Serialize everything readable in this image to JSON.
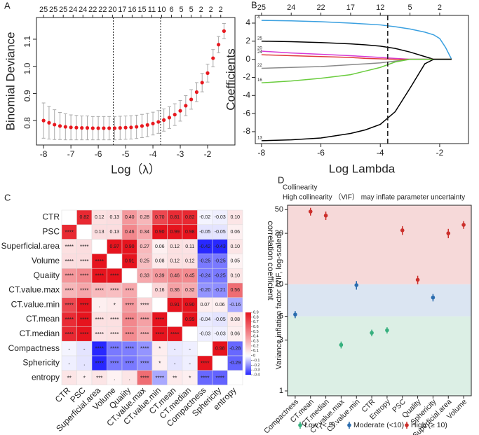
{
  "chart_data": [
    {
      "type": "cv",
      "label": "A",
      "xlabel": "Log（λ）",
      "ylabel": "Binomial Deviance",
      "x": [
        -8,
        -7.8,
        -7.6,
        -7.4,
        -7.2,
        -7,
        -6.8,
        -6.6,
        -6.4,
        -6.2,
        -6,
        -5.8,
        -5.6,
        -5.4,
        -5.2,
        -5,
        -4.8,
        -4.6,
        -4.4,
        -4.2,
        -4,
        -3.8,
        -3.6,
        -3.4,
        -3.2,
        -3,
        -2.8,
        -2.6,
        -2.4,
        -2.2,
        -2,
        -1.8,
        -1.6,
        -1.4
      ],
      "y": [
        0.8,
        0.792,
        0.785,
        0.78,
        0.777,
        0.775,
        0.774,
        0.773,
        0.773,
        0.772,
        0.772,
        0.772,
        0.772,
        0.772,
        0.773,
        0.774,
        0.775,
        0.777,
        0.78,
        0.784,
        0.789,
        0.795,
        0.802,
        0.811,
        0.822,
        0.836,
        0.855,
        0.878,
        0.905,
        0.94,
        0.975,
        1.03,
        1.08,
        1.13
      ],
      "errors": [
        0.065,
        0.06,
        0.055,
        0.05,
        0.048,
        0.046,
        0.045,
        0.044,
        0.044,
        0.043,
        0.043,
        0.043,
        0.043,
        0.043,
        0.043,
        0.043,
        0.043,
        0.043,
        0.043,
        0.043,
        0.042,
        0.042,
        0.041,
        0.04,
        0.04,
        0.038,
        0.037,
        0.036,
        0.035,
        0.034,
        0.033,
        0.032,
        0.03,
        0.028
      ],
      "color": "#e8191f",
      "error_color": "#aaaaaa",
      "xlim": [
        -8.26,
        -1.0
      ],
      "ylim": [
        0.71,
        1.18
      ],
      "xticks": [
        -8,
        -7,
        -6,
        -5,
        -4,
        -3,
        -2
      ],
      "yticks": [
        0.8,
        0.9,
        {
          "value": 1,
          "label": "1.0"
        },
        1.1
      ],
      "top_ticks": [
        {
          "value": -8,
          "label": "25"
        },
        {
          "value": -7.64,
          "label": "25"
        },
        {
          "value": -7.28,
          "label": "25"
        },
        {
          "value": -6.92,
          "label": "24"
        },
        {
          "value": -6.56,
          "label": "24"
        },
        {
          "value": -6.2,
          "label": "22"
        },
        {
          "value": -5.84,
          "label": "22"
        },
        {
          "value": -5.48,
          "label": "20"
        },
        {
          "value": -5.12,
          "label": "17"
        },
        {
          "value": -4.76,
          "label": "16"
        },
        {
          "value": -4.4,
          "label": "15"
        },
        {
          "value": -4.04,
          "label": "11"
        },
        {
          "value": -3.68,
          "label": "10"
        },
        {
          "value": -3.32,
          "label": "6"
        },
        {
          "value": -2.96,
          "label": "5"
        },
        {
          "value": -2.6,
          "label": "5"
        },
        {
          "value": -2.24,
          "label": "2"
        },
        {
          "value": -1.88,
          "label": "2"
        },
        {
          "value": -1.52,
          "label": "2"
        }
      ],
      "vlines": [
        -5.45,
        -3.72
      ]
    },
    {
      "type": "path",
      "label": "B",
      "xlabel": "Log Lambda",
      "ylabel": "Coefficients",
      "x": [
        -8,
        -7,
        -6,
        -5,
        -4.5,
        -4,
        -3.5,
        -3,
        -2.5,
        -2.2,
        -2,
        -1.8,
        -1.6
      ],
      "series": [
        {
          "name": "4",
          "color": "#3aa0e0",
          "values": [
            4.3,
            4.25,
            4.15,
            4,
            3.9,
            3.8,
            3.6,
            3.35,
            3,
            2.7,
            2.3,
            1.3,
            0
          ]
        },
        {
          "name": "25",
          "color": "#000000",
          "values": [
            2,
            1.95,
            1.85,
            1.7,
            1.6,
            1.45,
            1.2,
            0.8,
            0.3,
            0,
            0,
            0,
            0
          ]
        },
        {
          "name": "20",
          "color": "#d63ad6",
          "values": [
            0.9,
            0.7,
            0.55,
            0.4,
            0.3,
            0.2,
            0.1,
            0,
            0,
            0,
            0,
            0,
            0
          ]
        },
        {
          "name": "24",
          "color": "#e03b3b",
          "values": [
            0.5,
            0.4,
            0.3,
            0.2,
            0.1,
            0.05,
            0,
            0,
            0,
            0,
            0,
            0,
            0
          ]
        },
        {
          "name": "22",
          "color": "#8a8a8a",
          "values": [
            -1,
            -0.9,
            -0.8,
            -0.6,
            -0.5,
            -0.4,
            -0.2,
            0,
            0,
            0,
            0,
            0,
            0
          ]
        },
        {
          "name": "16",
          "color": "#6acc3e",
          "values": [
            -2.6,
            -2.4,
            -2.1,
            -1.7,
            -1.3,
            -0.9,
            -0.3,
            0,
            0,
            0,
            0,
            0,
            0
          ]
        },
        {
          "name": "13",
          "color": "#000000",
          "values": [
            -9,
            -8.9,
            -8.7,
            -8.2,
            -7.8,
            -7.2,
            -5.8,
            -3.2,
            -0.5,
            0,
            0,
            0,
            0
          ]
        }
      ],
      "xlim": [
        -8.21,
        -1.03
      ],
      "ylim": [
        -9.32,
        4.85
      ],
      "xticks": [
        -8,
        -6,
        -4,
        -2
      ],
      "yticks": [
        -8,
        -6,
        -4,
        -2,
        0,
        2,
        4
      ],
      "top_ticks": [
        {
          "value": -8,
          "label": "25"
        },
        {
          "value": -7,
          "label": "24"
        },
        {
          "value": -6,
          "label": "22"
        },
        {
          "value": -5,
          "label": "17"
        },
        {
          "value": -4,
          "label": "12"
        },
        {
          "value": -3,
          "label": "5"
        },
        {
          "value": -2,
          "label": "2"
        }
      ],
      "vlines": [
        -3.75
      ]
    },
    {
      "type": "heatmap",
      "label": "C",
      "colorbar_label": "correlation coefficient",
      "rows": [
        "CTR",
        "PSC",
        "Superficial.area",
        "Volume",
        "Quaiity",
        "CT.value.max",
        "CT.value.min",
        "CT.mean",
        "CT.median",
        "Compactness",
        "Sphericity",
        "entropy"
      ],
      "values": [
        [
          null,
          0.82,
          0.12,
          0.13,
          0.4,
          0.28,
          0.7,
          0.81,
          0.82,
          -0.02,
          -0.03,
          0.1
        ],
        [
          null,
          null,
          0.13,
          0.13,
          0.46,
          0.34,
          0.9,
          0.99,
          0.98,
          -0.05,
          -0.05,
          0.06
        ],
        [
          null,
          null,
          null,
          0.97,
          0.9,
          0.27,
          0.06,
          0.12,
          0.11,
          -0.42,
          -0.43,
          0.1
        ],
        [
          null,
          null,
          null,
          null,
          0.91,
          0.25,
          0.08,
          0.12,
          0.12,
          -0.25,
          -0.25,
          0.05
        ],
        [
          null,
          null,
          null,
          null,
          null,
          0.33,
          0.39,
          0.46,
          0.45,
          -0.24,
          -0.25,
          0.1
        ],
        [
          null,
          null,
          null,
          null,
          null,
          null,
          0.16,
          0.36,
          0.32,
          -0.2,
          -0.21,
          0.56
        ],
        [
          null,
          null,
          null,
          null,
          null,
          null,
          null,
          0.91,
          0.9,
          0.07,
          0.06,
          -0.16
        ],
        [
          null,
          null,
          null,
          null,
          null,
          null,
          null,
          null,
          0.99,
          -0.04,
          -0.05,
          0.08
        ],
        [
          null,
          null,
          null,
          null,
          null,
          null,
          null,
          null,
          null,
          -0.03,
          -0.03,
          0.06
        ],
        [
          null,
          null,
          null,
          null,
          null,
          null,
          null,
          null,
          null,
          null,
          0.98,
          -0.28
        ],
        [
          null,
          null,
          null,
          null,
          null,
          null,
          null,
          null,
          null,
          null,
          null,
          -0.29
        ],
        [
          null,
          null,
          null,
          null,
          null,
          null,
          null,
          null,
          null,
          null,
          null,
          null
        ]
      ],
      "value_labels": [
        [
          null,
          "0.82",
          "0.12",
          "0.13",
          "0.40",
          "0.28",
          "0.70",
          "0.81",
          "0.82",
          "-0.02",
          "-0.03",
          "0.10"
        ],
        [
          null,
          null,
          "0.13",
          "0.13",
          "0.46",
          "0.34",
          "0.90",
          "0.99",
          "0.98",
          "-0.05",
          "-0.05",
          "0.06"
        ],
        [
          null,
          null,
          null,
          "0.97",
          "0.90",
          "0.27",
          "0.06",
          "0.12",
          "0.11",
          "-0.42",
          "-0.43",
          "0.10"
        ],
        [
          null,
          null,
          null,
          null,
          "0.91",
          "0.25",
          "0.08",
          "0.12",
          "0.12",
          "-0.25",
          "-0.25",
          "0.05"
        ],
        [
          null,
          null,
          null,
          null,
          null,
          "0.33",
          "0.39",
          "0.46",
          "0.45",
          "-0.24",
          "-0.25",
          "0.10"
        ],
        [
          null,
          null,
          null,
          null,
          null,
          null,
          "0.16",
          "0.36",
          "0.32",
          "-0.20",
          "-0.21",
          "0.56"
        ],
        [
          null,
          null,
          null,
          null,
          null,
          null,
          null,
          "0.91",
          "0.90",
          "0.07",
          "0.06",
          "-0.16"
        ],
        [
          null,
          null,
          null,
          null,
          null,
          null,
          null,
          null,
          "0.99",
          "-0.04",
          "-0.05",
          "0.08"
        ],
        [
          null,
          null,
          null,
          null,
          null,
          null,
          null,
          null,
          null,
          "-0.03",
          "-0.03",
          "0.06"
        ],
        [
          null,
          null,
          null,
          null,
          null,
          null,
          null,
          null,
          null,
          null,
          "0.98",
          "-0.28"
        ],
        [
          null,
          null,
          null,
          null,
          null,
          null,
          null,
          null,
          null,
          null,
          null,
          "-0.29"
        ],
        [
          null,
          null,
          null,
          null,
          null,
          null,
          null,
          null,
          null,
          null,
          null,
          null
        ]
      ],
      "stars": [
        [],
        [
          "****"
        ],
        [
          "****",
          "****"
        ],
        [
          "****",
          "****",
          "****"
        ],
        [
          "****",
          "****",
          "****",
          "****"
        ],
        [
          "****",
          "****",
          "****",
          "****",
          "****"
        ],
        [
          "****",
          "****",
          ".",
          "*",
          "****",
          "****"
        ],
        [
          "****",
          "****",
          "****",
          "****",
          "****",
          "****",
          "****"
        ],
        [
          "****",
          "****",
          "****",
          "****",
          "****",
          "****",
          "****",
          "****"
        ],
        [
          "-",
          "-",
          "****",
          "****",
          "****",
          "****",
          "*",
          "-",
          "-"
        ],
        [
          "-",
          ".",
          "****",
          "****",
          "****",
          "****",
          "*",
          "-",
          "-",
          "****"
        ],
        [
          "**",
          "*",
          "***",
          ".",
          ".",
          "****",
          "****",
          "**",
          "*",
          "****",
          "****"
        ]
      ],
      "clim": [
        -0.4,
        0.9
      ],
      "cticks": [
        0.9,
        0.8,
        0.7,
        0.6,
        0.5,
        0.4,
        0.3,
        0.2,
        0.1,
        0,
        -0.1,
        -0.2,
        -0.3,
        -0.4
      ],
      "pos_color": "#e6141e",
      "neg_color": "#2828ff"
    },
    {
      "type": "vif",
      "label": "D",
      "title": "Collinearity",
      "subtitle": "High collinearity （VIF） may inflate parameter uncertainty",
      "ylabel": "Variance inflation factor (VIF, log-scaled)",
      "categories": [
        "Compactness",
        "CT.mean",
        "CT.median",
        "CT.value.max",
        "CT.value.min",
        "CTR",
        "Entropy",
        "PSC",
        "Quality",
        "Sphericity",
        "Superficial.area",
        "Volume"
      ],
      "series": [
        {
          "name": "Low (< 5)",
          "color": "#36b07e",
          "values": [
            null,
            null,
            null,
            2.7,
            null,
            3.5,
            3.7,
            null,
            null,
            null,
            null,
            null
          ],
          "errors": [
            null,
            null,
            null,
            0.2,
            null,
            0.25,
            0.25,
            null,
            null,
            null,
            null,
            null
          ]
        },
        {
          "name": "Moderate (<10)",
          "color": "#2a6cae",
          "values": [
            5.2,
            null,
            null,
            null,
            9.8,
            null,
            null,
            null,
            null,
            7.5,
            null,
            null
          ],
          "errors": [
            0.4,
            null,
            null,
            null,
            0.9,
            null,
            null,
            null,
            null,
            0.6,
            null,
            null
          ]
        },
        {
          "name": "High  (≥ 10)",
          "color": "#cc2f2b",
          "values": [
            null,
            48,
            44,
            null,
            null,
            null,
            null,
            32,
            11,
            null,
            30,
            36
          ],
          "errors": [
            null,
            4,
            4,
            null,
            null,
            null,
            null,
            3,
            1,
            null,
            3,
            3
          ]
        }
      ],
      "thresholds": [
        5,
        10
      ],
      "band_colors": [
        "#dcefe5",
        "#dbe5f2",
        "#f6d9d9"
      ],
      "log_y": true,
      "ylim": [
        0.9,
        55
      ],
      "yticks": [
        1,
        3,
        5,
        10,
        30,
        50
      ],
      "legend": "bottom"
    }
  ]
}
